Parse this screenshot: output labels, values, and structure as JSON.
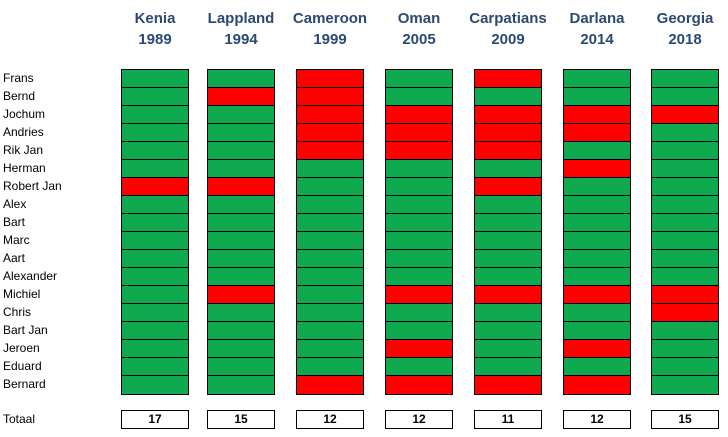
{
  "expeditions": [
    {
      "name": "Kenia",
      "year": "1989",
      "total": "17",
      "cells": [
        "g",
        "g",
        "g",
        "g",
        "g",
        "g",
        "r",
        "g",
        "g",
        "g",
        "g",
        "g",
        "g",
        "g",
        "g",
        "g",
        "g",
        "g"
      ]
    },
    {
      "name": "Lappland",
      "year": "1994",
      "total": "15",
      "cells": [
        "g",
        "r",
        "g",
        "g",
        "g",
        "g",
        "r",
        "g",
        "g",
        "g",
        "g",
        "g",
        "r",
        "g",
        "g",
        "g",
        "g",
        "g"
      ]
    },
    {
      "name": "Cameroon",
      "year": "1999",
      "total": "12",
      "cells": [
        "r",
        "r",
        "r",
        "r",
        "r",
        "g",
        "g",
        "g",
        "g",
        "g",
        "g",
        "g",
        "g",
        "g",
        "g",
        "g",
        "g",
        "r"
      ]
    },
    {
      "name": "Oman",
      "year": "2005",
      "total": "12",
      "cells": [
        "g",
        "g",
        "r",
        "r",
        "r",
        "g",
        "g",
        "g",
        "g",
        "g",
        "g",
        "g",
        "r",
        "g",
        "g",
        "r",
        "g",
        "r"
      ]
    },
    {
      "name": "Carpatians",
      "year": "2009",
      "total": "11",
      "cells": [
        "r",
        "g",
        "r",
        "r",
        "r",
        "g",
        "r",
        "g",
        "g",
        "g",
        "g",
        "g",
        "r",
        "g",
        "g",
        "g",
        "g",
        "r"
      ]
    },
    {
      "name": "Darlana",
      "year": "2014",
      "total": "12",
      "cells": [
        "g",
        "g",
        "r",
        "r",
        "g",
        "r",
        "g",
        "g",
        "g",
        "g",
        "g",
        "g",
        "r",
        "g",
        "g",
        "r",
        "g",
        "r"
      ]
    },
    {
      "name": "Georgia",
      "year": "2018",
      "total": "15",
      "cells": [
        "g",
        "g",
        "r",
        "g",
        "g",
        "g",
        "g",
        "g",
        "g",
        "g",
        "g",
        "g",
        "r",
        "r",
        "g",
        "g",
        "g",
        "g"
      ]
    }
  ],
  "members": [
    "Frans",
    "Bernd",
    "Jochum",
    "Andries",
    "Rik Jan",
    "Herman",
    "Robert Jan",
    "Alex",
    "Bart",
    "Marc",
    "Aart",
    "Alexander",
    "Michiel",
    "Chris",
    "Bart Jan",
    "Jeroen",
    "Eduard",
    "Bernard"
  ],
  "total_label": "Totaal",
  "colors": {
    "present": "#0fa94f",
    "absent": "#ff0000",
    "header": "#2a4a73"
  }
}
